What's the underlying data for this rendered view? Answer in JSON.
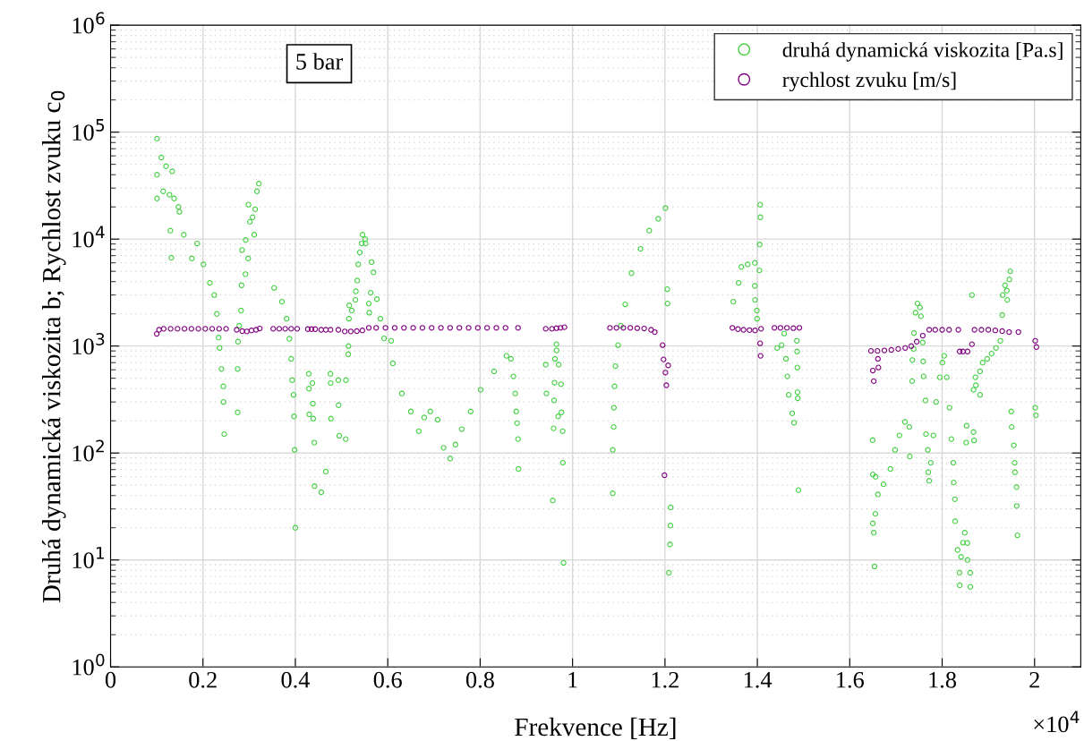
{
  "chart_data": {
    "type": "scatter",
    "xlabel": "Frekvence [Hz]",
    "ylabel": "Druhá dynamická viskozita b; Rychlost zvuku c$_{0}$",
    "annotations": [
      "5 bar",
      "×10$^{4}$"
    ],
    "xlim": [
      0,
      2.1
    ],
    "xticks": [
      0,
      0.2,
      0.4,
      0.6,
      0.8,
      1,
      1.2,
      1.4,
      1.6,
      1.8,
      2
    ],
    "ylim": [
      1,
      1000000
    ],
    "yticks": [
      {
        "value": 1,
        "label": "10$^{0}$"
      },
      {
        "value": 10,
        "label": "10$^{1}$"
      },
      {
        "value": 100,
        "label": "10$^{2}$"
      },
      {
        "value": 1000,
        "label": "10$^{3}$"
      },
      {
        "value": 10000,
        "label": "10$^{4}$"
      },
      {
        "value": 100000,
        "label": "10$^{5}$"
      },
      {
        "value": 1000000,
        "label": "10$^{6}$"
      }
    ],
    "log": "y",
    "grid": true,
    "legend": "top right",
    "marker": "circle",
    "series": [
      {
        "name": "druhá dynamická viskozita [Pa.s]",
        "color": "#47d147",
        "x": [
          0.1006,
          0.1006,
          0.1006,
          0.11,
          0.12,
          0.114,
          0.1335,
          0.1275,
          0.1295,
          0.1315,
          0.1375,
          0.147,
          0.149,
          0.1585,
          0.176,
          0.1875,
          0.201,
          0.215,
          0.2245,
          0.23,
          0.234,
          0.236,
          0.24,
          0.244,
          0.2445,
          0.246,
          0.275,
          0.275,
          0.276,
          0.2785,
          0.2825,
          0.2835,
          0.2845,
          0.292,
          0.2925,
          0.298,
          0.2985,
          0.3015,
          0.3075,
          0.311,
          0.313,
          0.317,
          0.321,
          0.354,
          0.371,
          0.381,
          0.387,
          0.391,
          0.393,
          0.396,
          0.397,
          0.3985,
          0.4,
          0.429,
          0.4295,
          0.43,
          0.437,
          0.438,
          0.4385,
          0.441,
          0.4415,
          0.456,
          0.466,
          0.476,
          0.4765,
          0.477,
          0.493,
          0.4935,
          0.495,
          0.509,
          0.5095,
          0.5145,
          0.515,
          0.516,
          0.5165,
          0.522,
          0.53,
          0.531,
          0.534,
          0.536,
          0.5395,
          0.5435,
          0.5455,
          0.551,
          0.552,
          0.565,
          0.569,
          0.563,
          0.559,
          0.56,
          0.5765,
          0.584,
          0.592,
          0.6075,
          0.611,
          0.6305,
          0.65,
          0.667,
          0.679,
          0.692,
          0.708,
          0.721,
          0.735,
          0.7465,
          0.76,
          0.7795,
          0.801,
          0.83,
          0.857,
          0.8665,
          0.872,
          0.876,
          0.878,
          0.88,
          0.882,
          0.883,
          0.942,
          0.9435,
          0.957,
          0.965,
          0.9655,
          0.962,
          0.961,
          0.96,
          0.959,
          0.969,
          0.97,
          0.975,
          0.976,
          0.9785,
          0.979,
          0.9805,
          1.087,
          1.087,
          1.089,
          1.0895,
          1.091,
          1.093,
          1.0985,
          1.1045,
          1.114,
          1.1275,
          1.147,
          1.166,
          1.1855,
          1.201,
          1.205,
          1.2055,
          1.2125,
          1.212,
          1.211,
          1.2085,
          1.348,
          1.3595,
          1.3655,
          1.379,
          1.3945,
          1.406,
          1.4065,
          1.405,
          1.4045,
          1.3945,
          1.395,
          1.399,
          1.3995,
          1.443,
          1.4525,
          1.458,
          1.462,
          1.465,
          1.468,
          1.4755,
          1.4795,
          1.4855,
          1.486,
          1.4865,
          1.487,
          1.4875,
          1.489,
          1.6495,
          1.65,
          1.661,
          1.6555,
          1.65,
          1.652,
          1.6535,
          1.656,
          1.673,
          1.688,
          1.698,
          1.7075,
          1.7195,
          1.729,
          1.73,
          1.735,
          1.7355,
          1.7385,
          1.739,
          1.7425,
          1.7465,
          1.752,
          1.754,
          1.758,
          1.759,
          1.76,
          1.764,
          1.765,
          1.77,
          1.769,
          1.7755,
          1.772,
          1.781,
          1.787,
          1.795,
          1.8005,
          1.8045,
          1.81,
          1.816,
          1.82,
          1.824,
          1.825,
          1.8275,
          1.828,
          1.8335,
          1.8375,
          1.838,
          1.841,
          1.845,
          1.849,
          1.8545,
          1.855,
          1.8605,
          1.861,
          1.853,
          1.852,
          1.868,
          1.872,
          1.873,
          1.882,
          1.8875,
          1.8975,
          1.907,
          1.9165,
          1.926,
          1.882,
          1.868,
          1.869,
          1.8645,
          1.93,
          1.931,
          1.936,
          1.94,
          1.941,
          1.9455,
          1.9475,
          1.9495,
          1.9505,
          1.955,
          1.957,
          1.9575,
          1.961,
          1.9615,
          1.963,
          2.0015,
          2.003
        ],
        "values": [
          87000,
          40000,
          24000,
          58000,
          48000,
          28000,
          43000,
          26000,
          12000,
          6700,
          24000,
          20000,
          18000,
          11000,
          6600,
          9100,
          5800,
          3900,
          3000,
          2000,
          1200,
          960,
          610,
          420,
          300,
          150,
          240,
          610,
          1100,
          1550,
          2150,
          3700,
          7900,
          4700,
          9800,
          6600,
          21000,
          14500,
          16000,
          11000,
          19000,
          28000,
          33000,
          3500,
          2600,
          1800,
          1170,
          760,
          480,
          350,
          220,
          107,
          20,
          550,
          400,
          230,
          450,
          290,
          210,
          125,
          49,
          43,
          67,
          550,
          450,
          210,
          480,
          280,
          145,
          135,
          480,
          840,
          1000,
          1800,
          2400,
          2150,
          2700,
          3250,
          4100,
          5800,
          7500,
          9100,
          11000,
          10000,
          9100,
          6100,
          4900,
          3150,
          2500,
          2050,
          2750,
          1800,
          1180,
          1120,
          690,
          360,
          245,
          160,
          215,
          245,
          205,
          112,
          89,
          120,
          167,
          245,
          390,
          580,
          810,
          760,
          520,
          360,
          245,
          190,
          135,
          71,
          670,
          360,
          36,
          1040,
          910,
          760,
          455,
          310,
          170,
          220,
          670,
          440,
          240,
          160,
          81,
          9.4,
          42,
          107,
          175,
          265,
          420,
          650,
          1020,
          1550,
          2450,
          4800,
          8100,
          12000,
          15500,
          19500,
          3400,
          2500,
          31,
          21,
          14,
          7.6,
          2600,
          3900,
          5500,
          5800,
          6000,
          21000,
          16000,
          8900,
          5100,
          3650,
          2700,
          2150,
          1800,
          960,
          1020,
          1310,
          760,
          520,
          350,
          235,
          192,
          1120,
          890,
          630,
          370,
          325,
          45,
          132,
          63,
          41,
          27,
          22,
          18,
          8.7,
          60,
          51,
          71,
          107,
          146,
          195,
          175,
          93,
          470,
          740,
          940,
          1320,
          2050,
          2500,
          2300,
          1900,
          1080,
          720,
          520,
          310,
          150,
          66,
          107,
          81,
          55,
          146,
          300,
          510,
          700,
          810,
          510,
          265,
          135,
          81,
          53,
          37,
          23,
          12.4,
          7.6,
          5.8,
          10.7,
          14.5,
          18,
          14.4,
          10,
          7.6,
          5.6,
          180,
          125,
          390,
          510,
          430,
          580,
          700,
          760,
          850,
          960,
          1120,
          350,
          157,
          131,
          3000,
          1950,
          3000,
          3700,
          3300,
          2700,
          4200,
          5000,
          245,
          175,
          118,
          81,
          66,
          48,
          32,
          17,
          265,
          225
        ]
      },
      {
        "name": "rychlost zvuku [m/s]",
        "color": "#800080",
        "x": [
          0.1,
          0.105,
          0.115,
          0.13,
          0.145,
          0.16,
          0.175,
          0.19,
          0.205,
          0.22,
          0.235,
          0.25,
          0.273,
          0.285,
          0.295,
          0.305,
          0.315,
          0.323,
          0.352,
          0.365,
          0.378,
          0.391,
          0.404,
          0.427,
          0.435,
          0.443,
          0.456,
          0.466,
          0.476,
          0.493,
          0.507,
          0.52,
          0.533,
          0.545,
          0.559,
          0.575,
          0.595,
          0.615,
          0.635,
          0.655,
          0.675,
          0.695,
          0.715,
          0.735,
          0.755,
          0.775,
          0.795,
          0.815,
          0.835,
          0.855,
          0.882,
          0.942,
          0.9555,
          0.965,
          0.974,
          0.9825,
          1.081,
          1.095,
          1.11,
          1.125,
          1.14,
          1.155,
          1.17,
          1.178,
          1.195,
          1.197,
          1.199,
          1.201,
          1.203,
          1.207,
          1.346,
          1.358,
          1.37,
          1.383,
          1.395,
          1.406,
          1.407,
          1.408,
          1.437,
          1.45,
          1.464,
          1.478,
          1.491,
          1.646,
          1.65,
          1.652,
          1.66,
          1.661,
          1.662,
          1.675,
          1.69,
          1.705,
          1.72,
          1.733,
          1.745,
          1.758,
          1.772,
          1.785,
          1.8,
          1.815,
          1.835,
          1.838,
          1.845,
          1.855,
          1.8645,
          1.87,
          1.885,
          1.9,
          1.915,
          1.93,
          1.945,
          1.965,
          2.0015,
          2.004
        ],
        "values": [
          1300,
          1420,
          1450,
          1450,
          1450,
          1450,
          1450,
          1450,
          1450,
          1450,
          1450,
          1450,
          1420,
          1380,
          1370,
          1400,
          1420,
          1460,
          1450,
          1450,
          1450,
          1450,
          1450,
          1440,
          1440,
          1440,
          1420,
          1420,
          1420,
          1420,
          1370,
          1370,
          1380,
          1400,
          1480,
          1480,
          1480,
          1480,
          1480,
          1480,
          1480,
          1480,
          1480,
          1480,
          1480,
          1480,
          1480,
          1480,
          1480,
          1480,
          1480,
          1450,
          1450,
          1470,
          1480,
          1500,
          1480,
          1480,
          1480,
          1480,
          1470,
          1460,
          1420,
          1350,
          1020,
          750,
          62,
          565,
          430,
          660,
          1480,
          1440,
          1420,
          1410,
          1400,
          1060,
          810,
          1450,
          1480,
          1480,
          1480,
          1470,
          1480,
          900,
          590,
          470,
          900,
          760,
          630,
          910,
          920,
          940,
          960,
          1000,
          1100,
          1250,
          1420,
          1420,
          1420,
          1420,
          1420,
          890,
          890,
          890,
          1040,
          1420,
          1420,
          1420,
          1400,
          1380,
          1350,
          1350,
          1120,
          980
        ]
      }
    ]
  }
}
